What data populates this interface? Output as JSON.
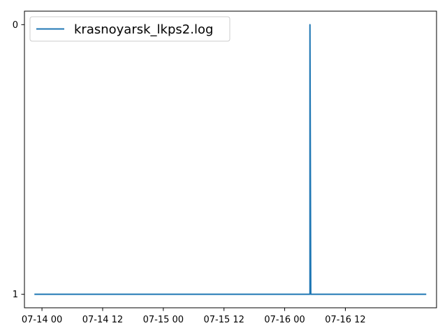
{
  "chart_data": {
    "type": "line",
    "title": "",
    "xlabel": "",
    "ylabel": "",
    "x_axis": {
      "kind": "datetime",
      "xlim": [
        "2024-07-13T20:32",
        "2024-07-17T06:02"
      ],
      "ticks": [
        {
          "value": "2024-07-14T00:00",
          "label": "07-14 00"
        },
        {
          "value": "2024-07-14T12:00",
          "label": "07-14 12"
        },
        {
          "value": "2024-07-15T00:00",
          "label": "07-15 00"
        },
        {
          "value": "2024-07-15T12:00",
          "label": "07-15 12"
        },
        {
          "value": "2024-07-16T00:00",
          "label": "07-16 00"
        },
        {
          "value": "2024-07-16T12:00",
          "label": "07-16 12"
        }
      ]
    },
    "y_axis": {
      "ylim": [
        1.05,
        -0.05
      ],
      "inverted": true,
      "ticks": [
        {
          "value": 0,
          "label": "0"
        },
        {
          "value": 1,
          "label": "1"
        }
      ]
    },
    "grid": false,
    "legend": {
      "position": "upper-left"
    },
    "series": [
      {
        "name": "krasnoyarsk_lkps2.log",
        "color": "#1f77b4",
        "points": [
          {
            "x": "2024-07-13T22:30",
            "y": 1
          },
          {
            "x": "2024-07-16T05:00",
            "y": 1
          },
          {
            "x": "2024-07-16T05:00",
            "y": 0
          },
          {
            "x": "2024-07-16T05:10",
            "y": 1
          },
          {
            "x": "2024-07-17T04:00",
            "y": 1
          }
        ]
      }
    ]
  }
}
